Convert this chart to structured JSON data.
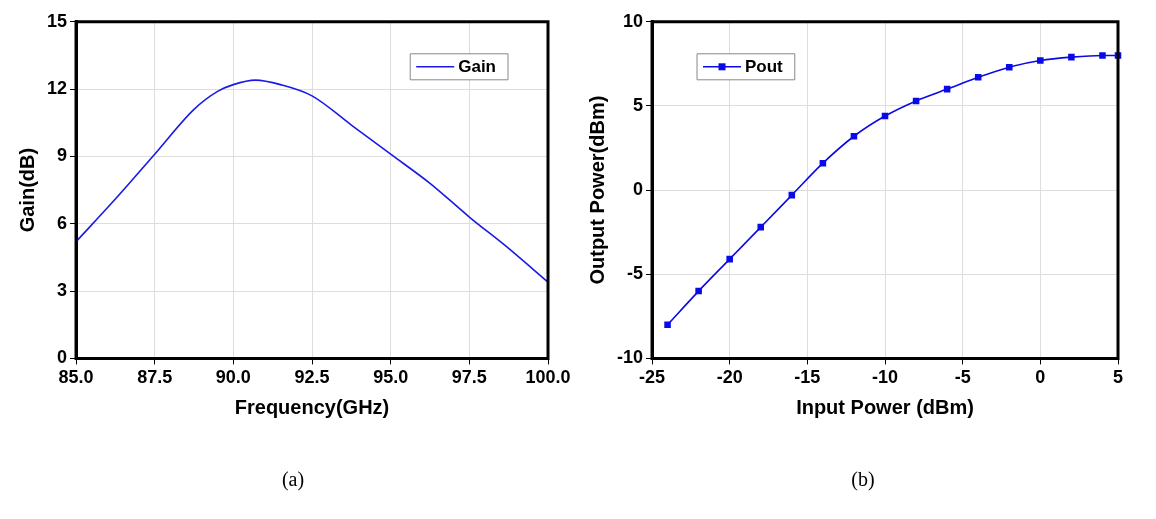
{
  "chart_data": [
    {
      "type": "line",
      "xlabel": "Frequency(GHz)",
      "ylabel": "Gain(dB)",
      "annotations": [
        "(a)"
      ],
      "xlim": [
        85,
        100
      ],
      "xticks": [
        {
          "value": 85,
          "label": "85.0"
        },
        {
          "value": 87.5,
          "label": "87.5"
        },
        {
          "value": 90,
          "label": "90.0"
        },
        {
          "value": 92.5,
          "label": "92.5"
        },
        {
          "value": 95,
          "label": "95.0"
        },
        {
          "value": 97.5,
          "label": "97.5"
        },
        {
          "value": 100,
          "label": "100.0"
        }
      ],
      "ylim": [
        0,
        15
      ],
      "yticks": [
        0,
        3,
        6,
        9,
        12,
        15
      ],
      "grid": true,
      "legend": "top right",
      "marker": "none",
      "series": [
        {
          "name": "Gain",
          "color": "#1a1ae6",
          "x": [
            85,
            86.25,
            87.5,
            88.75,
            89.5,
            90,
            90.7,
            91.5,
            92.5,
            93.75,
            95,
            96.25,
            97.5,
            98.75,
            100
          ],
          "values": [
            5.2,
            7.1,
            9.1,
            11.1,
            11.9,
            12.2,
            12.4,
            12.2,
            11.7,
            10.4,
            9.1,
            7.8,
            6.3,
            4.9,
            3.4
          ]
        }
      ]
    },
    {
      "type": "line",
      "xlabel": "Input Power (dBm)",
      "ylabel": "Output Power(dBm)",
      "annotations": [
        "(b)"
      ],
      "xlim": [
        -25,
        5
      ],
      "xticks": [
        -25,
        -20,
        -15,
        -10,
        -5,
        0,
        5
      ],
      "ylim": [
        -10,
        10
      ],
      "yticks": [
        -10,
        -5,
        0,
        5,
        10
      ],
      "grid": true,
      "legend": "top left",
      "marker": "square",
      "series": [
        {
          "name": "Pout",
          "color": "#0a0ae6",
          "x": [
            -24,
            -22,
            -20,
            -18,
            -16,
            -14,
            -12,
            -10,
            -8,
            -6,
            -4,
            -2,
            0,
            2,
            4,
            5
          ],
          "values": [
            -8.0,
            -6.0,
            -4.1,
            -2.2,
            -0.3,
            1.6,
            3.2,
            4.4,
            5.3,
            6.0,
            6.7,
            7.3,
            7.7,
            7.9,
            8.0,
            8.0
          ]
        }
      ]
    }
  ]
}
